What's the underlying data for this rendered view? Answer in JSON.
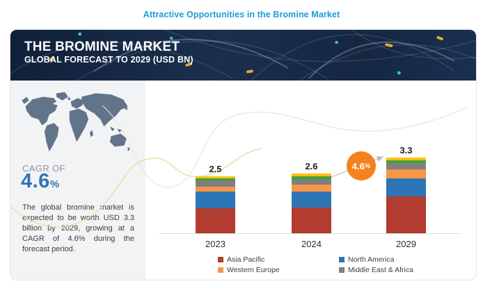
{
  "page": {
    "title": "Attractive Opportunities in the Bromine Market",
    "title_color": "#1a9cd8"
  },
  "header": {
    "title": "THE BROMINE MARKET",
    "subtitle": "GLOBAL FORECAST TO 2029 (USD BN)"
  },
  "left_panel": {
    "cagr_label": "CAGR OF",
    "cagr_value": "4.6",
    "cagr_suffix": "%",
    "cagr_color": "#2e75b6",
    "description": "The global bromine market is expected to be worth USD 3.3 billion by 2029, growing at a CAGR of 4.6% during the forecast period."
  },
  "growth_badge": {
    "value": "4.6",
    "suffix": "%",
    "color": "#f6821f"
  },
  "chart_data": {
    "type": "bar",
    "stacked": true,
    "unit": "USD BN",
    "categories": [
      "2023",
      "2024",
      "2029"
    ],
    "totals": [
      2.5,
      2.6,
      3.3
    ],
    "series": [
      {
        "name": "Asia Pacific",
        "color": "#b23c30",
        "values": [
          1.1,
          1.12,
          1.62
        ]
      },
      {
        "name": "North America",
        "color": "#2e75b6",
        "values": [
          0.73,
          0.7,
          0.76
        ]
      },
      {
        "name": "Western Europe",
        "color": "#f79649",
        "values": [
          0.21,
          0.3,
          0.4
        ]
      },
      {
        "name": "Middle East & Africa",
        "color": "#7f7f7f",
        "values": [
          0.26,
          0.25,
          0.28
        ]
      },
      {
        "name": "",
        "color": "#3fa335",
        "values": [
          0.1,
          0.12,
          0.13
        ]
      },
      {
        "name": "",
        "color": "#fdc013",
        "values": [
          0.1,
          0.11,
          0.11
        ]
      }
    ],
    "legend": [
      {
        "label": "Asia Pacific",
        "color": "#b23c30"
      },
      {
        "label": "North America",
        "color": "#2e75b6"
      },
      {
        "label": "Western Europe",
        "color": "#f79649"
      },
      {
        "label": "Middle East & Africa",
        "color": "#7f7f7f"
      }
    ],
    "legend_position": "bottom",
    "ylim": [
      0,
      3.5
    ],
    "gridlines": false,
    "annotations": [
      {
        "type": "growth-badge",
        "text": "4.6%"
      }
    ]
  }
}
